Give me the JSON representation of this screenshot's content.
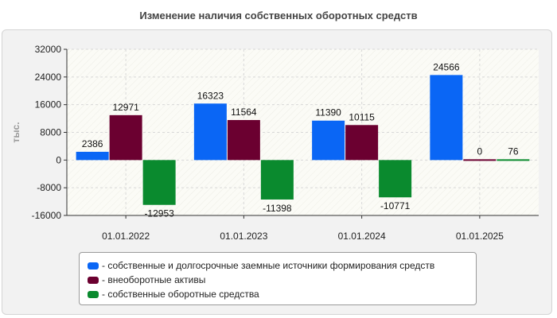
{
  "chart_data": {
    "type": "bar",
    "title": "Изменение наличия собственных оборотных средств",
    "ylabel": "тыс.",
    "xlabel": "",
    "categories": [
      "01.01.2022",
      "01.01.2023",
      "01.01.2024",
      "01.01.2025"
    ],
    "ylim": [
      -16000,
      32000
    ],
    "yticks": [
      32000,
      24000,
      16000,
      8000,
      0,
      -8000,
      -16000
    ],
    "grid": true,
    "legend_position": "bottom",
    "series": [
      {
        "name": "- собственные и долгосрочные заемные источники формирования средств",
        "color": "#0a66f5",
        "values": [
          2386,
          16323,
          11390,
          24566
        ]
      },
      {
        "name": "- внеоборотные активы",
        "color": "#6b0030",
        "values": [
          12971,
          11564,
          10115,
          0
        ]
      },
      {
        "name": "- собственные оборотные средства",
        "color": "#0a8a2e",
        "values": [
          -12953,
          -11398,
          -10771,
          76
        ]
      }
    ]
  }
}
